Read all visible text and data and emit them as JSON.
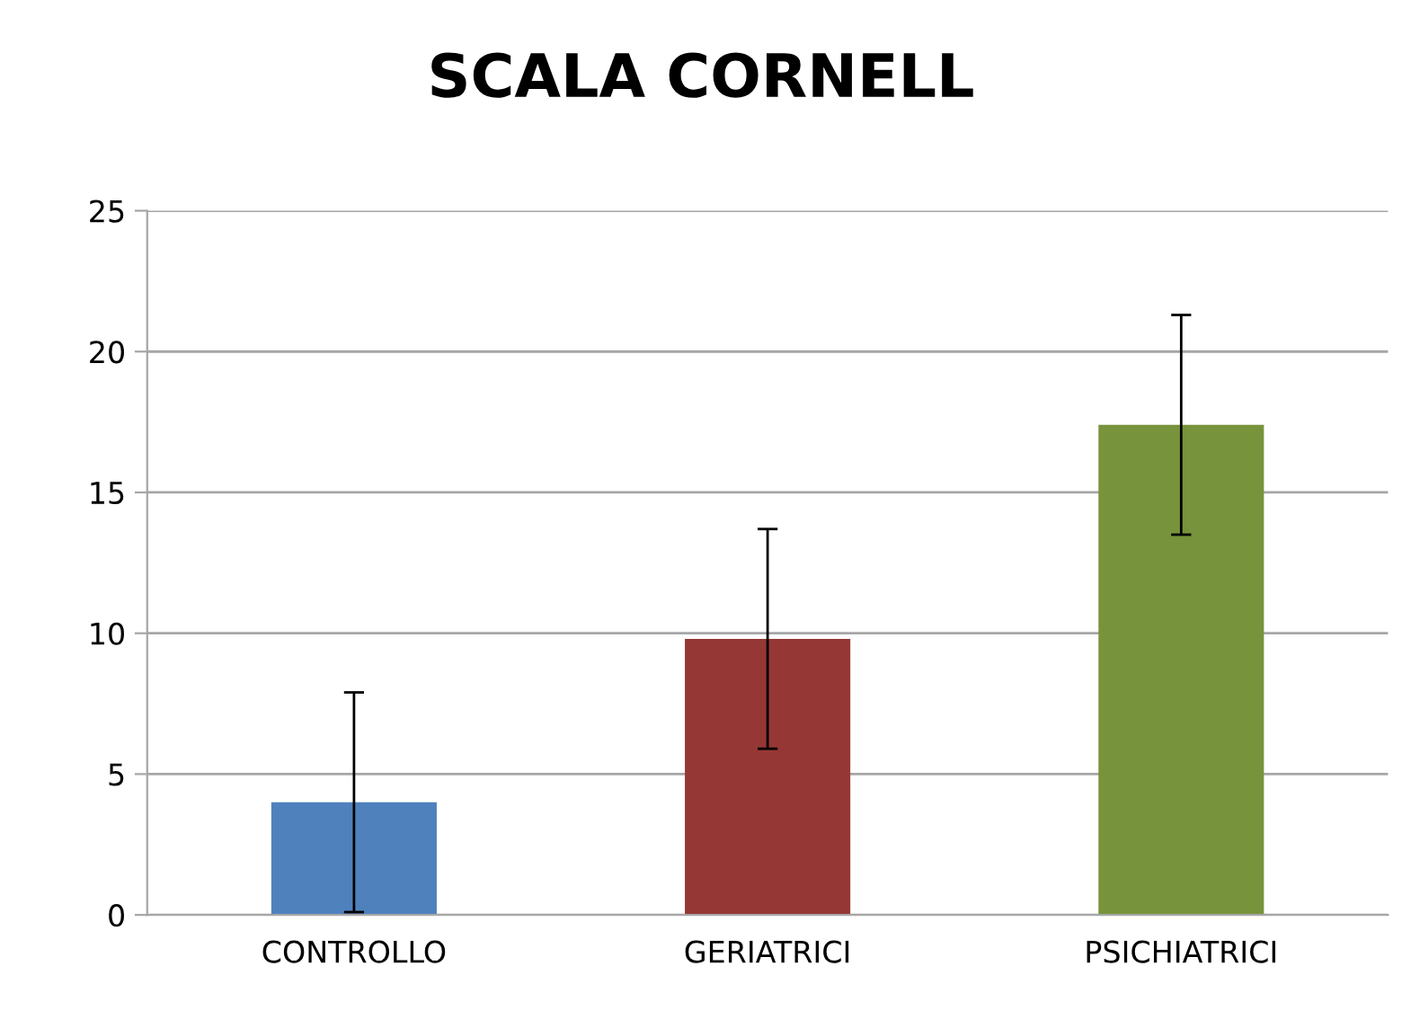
{
  "chart_data": {
    "type": "bar",
    "title": "SCALA CORNELL",
    "categories": [
      "CONTROLLO",
      "GERIATRICI",
      "PSICHIATRICI"
    ],
    "values": [
      4.0,
      9.8,
      17.4
    ],
    "errors": [
      3.9,
      3.9,
      3.9
    ],
    "colors": [
      "#4f81bd",
      "#953735",
      "#77933c"
    ],
    "ylim": [
      0,
      25
    ],
    "yticks": [
      0,
      5,
      10,
      15,
      20,
      25
    ],
    "grid": "y",
    "legend": false
  }
}
